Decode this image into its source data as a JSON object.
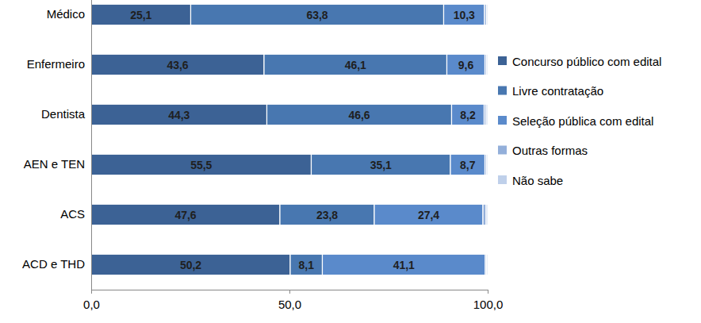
{
  "chart_data": {
    "type": "bar",
    "orientation": "horizontal",
    "stacked": true,
    "data_labels": true,
    "legend": "right",
    "grid": false,
    "categories": [
      "Médico",
      "Enfermeiro",
      "Dentista",
      "AEN e TEN",
      "ACS",
      "ACD e THD"
    ],
    "series": [
      {
        "name": "Concurso público com edital",
        "color": "#3C6295",
        "values": [
          25.1,
          43.6,
          44.3,
          55.5,
          47.6,
          50.2
        ],
        "value_labels": [
          "25,1",
          "43,6",
          "44,3",
          "55,5",
          "47,6",
          "50,2"
        ]
      },
      {
        "name": "Livre contratação",
        "color": "#4877B0",
        "values": [
          63.8,
          46.1,
          46.6,
          35.1,
          23.8,
          8.1
        ],
        "value_labels": [
          "63,8",
          "46,1",
          "46,6",
          "35,1",
          "23,8",
          "8,1"
        ]
      },
      {
        "name": "Seleção pública com edital",
        "color": "#5A8ACB",
        "values": [
          10.3,
          9.6,
          8.2,
          8.7,
          27.4,
          41.1
        ],
        "value_labels": [
          "10,3",
          "9,6",
          "8,2",
          "8,7",
          "27,4",
          "41,1"
        ]
      },
      {
        "name": "Outras formas",
        "color": "#93AFDA",
        "values": [
          0.5,
          0.4,
          0.5,
          0.4,
          0.8,
          0.3
        ]
      },
      {
        "name": "Não sabe",
        "color": "#BFD0EA",
        "values": [
          0.3,
          0.3,
          0.4,
          0.3,
          0.4,
          0.3
        ]
      }
    ],
    "xlim": [
      0,
      100
    ],
    "xticks": [
      {
        "value": 0,
        "label": "0,0"
      },
      {
        "value": 50,
        "label": "50,0"
      },
      {
        "value": 100,
        "label": "100,0"
      }
    ]
  }
}
